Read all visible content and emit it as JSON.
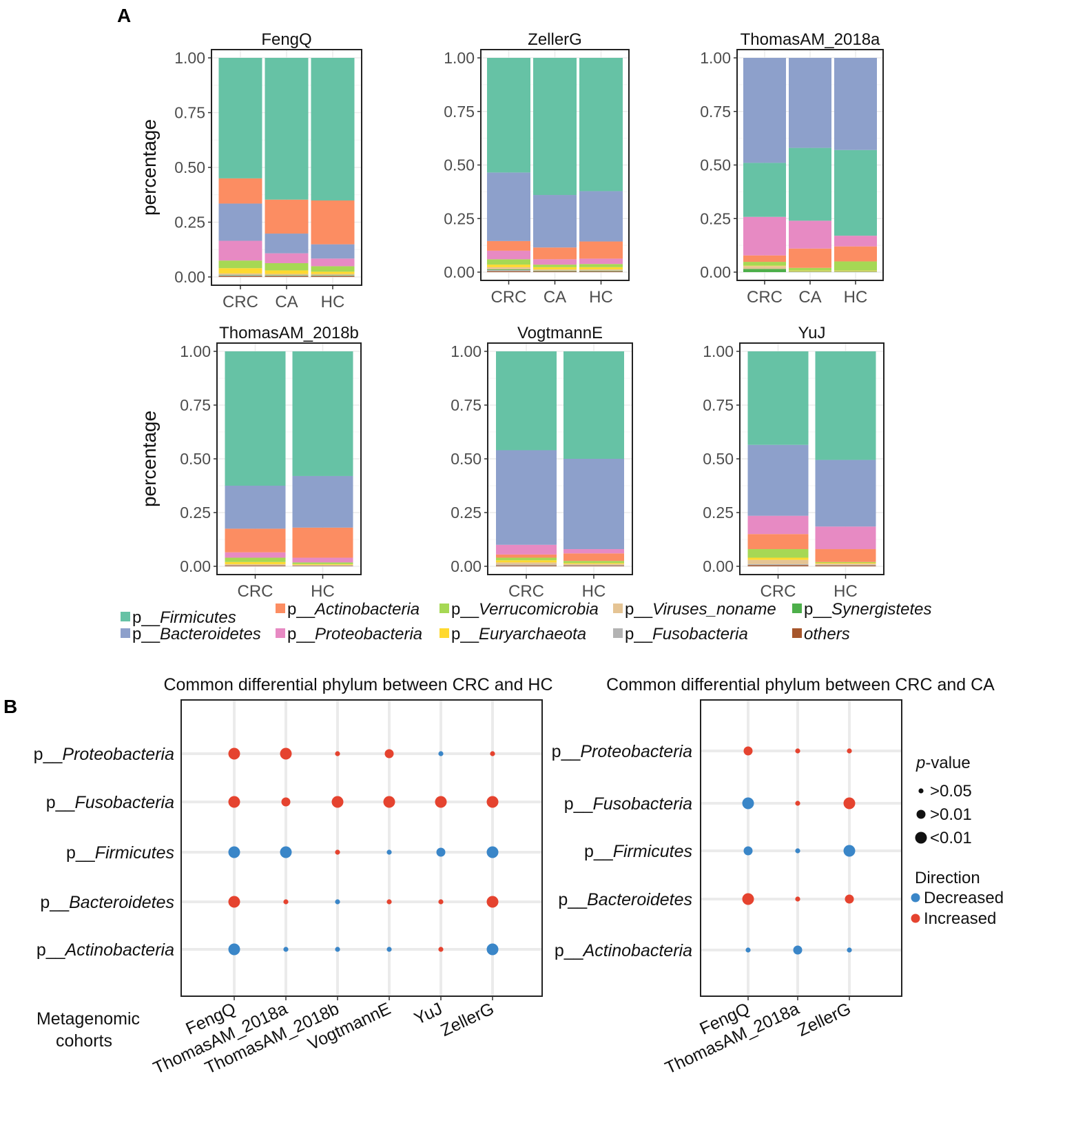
{
  "panels": {
    "a": "A",
    "b": "B"
  },
  "chart_data": [
    {
      "type": "stacked-bar",
      "title": "FengQ",
      "ylabel": "percentage",
      "ylim": [
        0,
        1
      ],
      "ticks": [
        "0.00",
        "0.25",
        "0.50",
        "0.75",
        "1.00"
      ],
      "categories": [
        "CRC",
        "CA",
        "HC"
      ],
      "segments": [
        [
          [
            "others",
            0.004
          ],
          [
            "Fusobacteria",
            0.004
          ],
          [
            "Synergistetes",
            0.002
          ],
          [
            "Viruses",
            0.006
          ],
          [
            "Euryarchaeota",
            0.024
          ],
          [
            "Verrucomicrobia",
            0.035
          ],
          [
            "Proteobacteria",
            0.09
          ],
          [
            "Bacteroidetes",
            0.17
          ],
          [
            "Actinobacteria",
            0.115
          ],
          [
            "Firmicutes",
            0.55
          ]
        ],
        [
          [
            "others",
            0.004
          ],
          [
            "Fusobacteria",
            0.002
          ],
          [
            "Synergistetes",
            0.002
          ],
          [
            "Viruses",
            0.006
          ],
          [
            "Euryarchaeota",
            0.016
          ],
          [
            "Verrucomicrobia",
            0.033
          ],
          [
            "Proteobacteria",
            0.045
          ],
          [
            "Bacteroidetes",
            0.09
          ],
          [
            "Actinobacteria",
            0.155
          ],
          [
            "Firmicutes",
            0.647
          ]
        ],
        [
          [
            "others",
            0.004
          ],
          [
            "Fusobacteria",
            0.002
          ],
          [
            "Synergistetes",
            0.002
          ],
          [
            "Viruses",
            0.006
          ],
          [
            "Euryarchaeota",
            0.01
          ],
          [
            "Verrucomicrobia",
            0.025
          ],
          [
            "Proteobacteria",
            0.035
          ],
          [
            "Bacteroidetes",
            0.065
          ],
          [
            "Actinobacteria",
            0.2
          ],
          [
            "Firmicutes",
            0.651
          ]
        ]
      ]
    },
    {
      "type": "stacked-bar",
      "title": "ZellerG",
      "ylabel": "",
      "ylim": [
        0,
        1
      ],
      "ticks": [
        "0.00",
        "0.25",
        "0.50",
        "0.75",
        "1.00"
      ],
      "categories": [
        "CRC",
        "CA",
        "HC"
      ],
      "segments": [
        [
          [
            "others",
            0.004
          ],
          [
            "Fusobacteria",
            0.006
          ],
          [
            "Synergistetes",
            0.003
          ],
          [
            "Viruses",
            0.01
          ],
          [
            "Euryarchaeota",
            0.012
          ],
          [
            "Verrucomicrobia",
            0.025
          ],
          [
            "Proteobacteria",
            0.04
          ],
          [
            "Actinobacteria",
            0.045
          ],
          [
            "Bacteroidetes",
            0.32
          ],
          [
            "Firmicutes",
            0.535
          ]
        ],
        [
          [
            "others",
            0.003
          ],
          [
            "Fusobacteria",
            0.002
          ],
          [
            "Synergistetes",
            0.002
          ],
          [
            "Viruses",
            0.006
          ],
          [
            "Euryarchaeota",
            0.01
          ],
          [
            "Verrucomicrobia",
            0.012
          ],
          [
            "Proteobacteria",
            0.025
          ],
          [
            "Actinobacteria",
            0.055
          ],
          [
            "Bacteroidetes",
            0.245
          ],
          [
            "Firmicutes",
            0.64
          ]
        ],
        [
          [
            "others",
            0.003
          ],
          [
            "Fusobacteria",
            0.002
          ],
          [
            "Synergistetes",
            0.002
          ],
          [
            "Viruses",
            0.006
          ],
          [
            "Euryarchaeota",
            0.01
          ],
          [
            "Verrucomicrobia",
            0.015
          ],
          [
            "Proteobacteria",
            0.025
          ],
          [
            "Actinobacteria",
            0.08
          ],
          [
            "Bacteroidetes",
            0.235
          ],
          [
            "Firmicutes",
            0.622
          ]
        ]
      ]
    },
    {
      "type": "stacked-bar",
      "title": "ThomasAM_2018a",
      "ylabel": "",
      "ylim": [
        0,
        1
      ],
      "ticks": [
        "0.00",
        "0.25",
        "0.50",
        "0.75",
        "1.00"
      ],
      "categories": [
        "CRC",
        "CA",
        "HC"
      ],
      "segments": [
        [
          [
            "Synergistetes",
            0.015
          ],
          [
            "Viruses",
            0.013
          ],
          [
            "Euryarchaeota",
            0.002
          ],
          [
            "Verrucomicrobia",
            0.018
          ],
          [
            "Actinobacteria",
            0.03
          ],
          [
            "Proteobacteria",
            0.18
          ],
          [
            "Firmicutes",
            0.252
          ],
          [
            "Bacteroidetes",
            0.49
          ]
        ],
        [
          [
            "Synergistetes",
            0.002
          ],
          [
            "Viruses",
            0.003
          ],
          [
            "Euryarchaeota",
            0.002
          ],
          [
            "Verrucomicrobia",
            0.013
          ],
          [
            "Actinobacteria",
            0.09
          ],
          [
            "Proteobacteria",
            0.13
          ],
          [
            "Firmicutes",
            0.34
          ],
          [
            "Bacteroidetes",
            0.42
          ]
        ],
        [
          [
            "Synergistetes",
            0.002
          ],
          [
            "Viruses",
            0.003
          ],
          [
            "Euryarchaeota",
            0.002
          ],
          [
            "Verrucomicrobia",
            0.043
          ],
          [
            "Actinobacteria",
            0.07
          ],
          [
            "Proteobacteria",
            0.05
          ],
          [
            "Firmicutes",
            0.4
          ],
          [
            "Bacteroidetes",
            0.43
          ]
        ]
      ]
    },
    {
      "type": "stacked-bar",
      "title": "ThomasAM_2018b",
      "ylabel": "percentage",
      "ylim": [
        0,
        1
      ],
      "ticks": [
        "0.00",
        "0.25",
        "0.50",
        "0.75",
        "1.00"
      ],
      "categories": [
        "CRC",
        "HC"
      ],
      "segments": [
        [
          [
            "others",
            0.003
          ],
          [
            "Fusobacteria",
            0.002
          ],
          [
            "Viruses",
            0.005
          ],
          [
            "Euryarchaeota",
            0.01
          ],
          [
            "Verrucomicrobia",
            0.02
          ],
          [
            "Proteobacteria",
            0.025
          ],
          [
            "Actinobacteria",
            0.11
          ],
          [
            "Bacteroidetes",
            0.2
          ],
          [
            "Firmicutes",
            0.625
          ]
        ],
        [
          [
            "others",
            0.002
          ],
          [
            "Fusobacteria",
            0.002
          ],
          [
            "Viruses",
            0.003
          ],
          [
            "Euryarchaeota",
            0.003
          ],
          [
            "Verrucomicrobia",
            0.008
          ],
          [
            "Proteobacteria",
            0.022
          ],
          [
            "Actinobacteria",
            0.14
          ],
          [
            "Bacteroidetes",
            0.24
          ],
          [
            "Firmicutes",
            0.58
          ]
        ]
      ]
    },
    {
      "type": "stacked-bar",
      "title": "VogtmannE",
      "ylabel": "",
      "ylim": [
        0,
        1
      ],
      "ticks": [
        "0.00",
        "0.25",
        "0.50",
        "0.75",
        "1.00"
      ],
      "categories": [
        "CRC",
        "HC"
      ],
      "segments": [
        [
          [
            "others",
            0.004
          ],
          [
            "Fusobacteria",
            0.004
          ],
          [
            "Viruses",
            0.01
          ],
          [
            "Euryarchaeota",
            0.01
          ],
          [
            "Verrucomicrobia",
            0.012
          ],
          [
            "Actinobacteria",
            0.015
          ],
          [
            "Proteobacteria",
            0.045
          ],
          [
            "Bacteroidetes",
            0.44
          ],
          [
            "Firmicutes",
            0.46
          ]
        ],
        [
          [
            "others",
            0.003
          ],
          [
            "Fusobacteria",
            0.003
          ],
          [
            "Viruses",
            0.005
          ],
          [
            "Euryarchaeota",
            0.004
          ],
          [
            "Verrucomicrobia",
            0.01
          ],
          [
            "Actinobacteria",
            0.035
          ],
          [
            "Proteobacteria",
            0.02
          ],
          [
            "Bacteroidetes",
            0.42
          ],
          [
            "Firmicutes",
            0.5
          ]
        ]
      ]
    },
    {
      "type": "stacked-bar",
      "title": "YuJ",
      "ylabel": "",
      "ylim": [
        0,
        1
      ],
      "ticks": [
        "0.00",
        "0.25",
        "0.50",
        "0.75",
        "1.00"
      ],
      "categories": [
        "CRC",
        "HC"
      ],
      "segments": [
        [
          [
            "others",
            0.005
          ],
          [
            "Fusobacteria",
            0.005
          ],
          [
            "Viruses",
            0.02
          ],
          [
            "Euryarchaeota",
            0.01
          ],
          [
            "Verrucomicrobia",
            0.04
          ],
          [
            "Actinobacteria",
            0.07
          ],
          [
            "Proteobacteria",
            0.085
          ],
          [
            "Bacteroidetes",
            0.33
          ],
          [
            "Firmicutes",
            0.435
          ]
        ],
        [
          [
            "others",
            0.004
          ],
          [
            "Fusobacteria",
            0.003
          ],
          [
            "Viruses",
            0.006
          ],
          [
            "Euryarchaeota",
            0.003
          ],
          [
            "Verrucomicrobia",
            0.004
          ],
          [
            "Actinobacteria",
            0.06
          ],
          [
            "Proteobacteria",
            0.105
          ],
          [
            "Bacteroidetes",
            0.31
          ],
          [
            "Firmicutes",
            0.505
          ]
        ]
      ]
    },
    {
      "type": "dot",
      "title": "Common differential phylum between CRC and HC",
      "xlabel": "Metagenomic cohorts",
      "rows": [
        "p__Proteobacteria",
        "p__Fusobacteria",
        "p__Firmicutes",
        "p__Bacteroidetes",
        "p__Actinobacteria"
      ],
      "columns": [
        "FengQ",
        "ThomasAM_2018a",
        "ThomasAM_2018b",
        "VogtmannE",
        "YuJ",
        "ZellerG"
      ],
      "direction": [
        [
          "Increased",
          "Increased",
          "Increased",
          "Increased",
          "Decreased",
          "Increased"
        ],
        [
          "Increased",
          "Increased",
          "Increased",
          "Increased",
          "Increased",
          "Increased"
        ],
        [
          "Decreased",
          "Decreased",
          "Increased",
          "Decreased",
          "Decreased",
          "Decreased"
        ],
        [
          "Increased",
          "Increased",
          "Decreased",
          "Increased",
          "Increased",
          "Increased"
        ],
        [
          "Decreased",
          "Decreased",
          "Decreased",
          "Decreased",
          "Increased",
          "Decreased"
        ]
      ],
      "pvalue": [
        [
          "<0.01",
          "<0.01",
          ">0.05",
          ">0.01",
          ">0.05",
          ">0.05"
        ],
        [
          "<0.01",
          ">0.01",
          "<0.01",
          "<0.01",
          "<0.01",
          "<0.01"
        ],
        [
          "<0.01",
          "<0.01",
          ">0.05",
          ">0.05",
          ">0.01",
          "<0.01"
        ],
        [
          "<0.01",
          ">0.05",
          ">0.05",
          ">0.05",
          ">0.05",
          "<0.01"
        ],
        [
          "<0.01",
          ">0.05",
          ">0.05",
          ">0.05",
          ">0.05",
          "<0.01"
        ]
      ]
    },
    {
      "type": "dot",
      "title": "Common differential phylum between CRC and CA",
      "rows": [
        "p__Proteobacteria",
        "p__Fusobacteria",
        "p__Firmicutes",
        "p__Bacteroidetes",
        "p__Actinobacteria"
      ],
      "columns": [
        "FengQ",
        "ThomasAM_2018a",
        "ZellerG"
      ],
      "direction": [
        [
          "Increased",
          "Increased",
          "Increased"
        ],
        [
          "Decreased",
          "Increased",
          "Increased"
        ],
        [
          "Decreased",
          "Decreased",
          "Decreased"
        ],
        [
          "Increased",
          "Increased",
          "Increased"
        ],
        [
          "Decreased",
          "Decreased",
          "Decreased"
        ]
      ],
      "pvalue": [
        [
          ">0.01",
          ">0.05",
          ">0.05"
        ],
        [
          "<0.01",
          ">0.05",
          "<0.01"
        ],
        [
          ">0.01",
          ">0.05",
          "<0.01"
        ],
        [
          "<0.01",
          ">0.05",
          ">0.01"
        ],
        [
          ">0.05",
          ">0.01",
          ">0.05"
        ]
      ]
    }
  ],
  "phylum_legend": [
    {
      "key": "Firmicutes",
      "prefix": "p__",
      "name": "Firmicutes",
      "color": "#66c2a5"
    },
    {
      "key": "Bacteroidetes",
      "prefix": "p__",
      "name": "Bacteroidetes",
      "color": "#8da0cb"
    },
    {
      "key": "Actinobacteria",
      "prefix": "p__",
      "name": "Actinobacteria",
      "color": "#fc8d62"
    },
    {
      "key": "Proteobacteria",
      "prefix": "p__",
      "name": "Proteobacteria",
      "color": "#e78ac3"
    },
    {
      "key": "Verrucomicrobia",
      "prefix": "p__",
      "name": "Verrucomicrobia",
      "color": "#a6d854"
    },
    {
      "key": "Euryarchaeota",
      "prefix": "p__",
      "name": "Euryarchaeota",
      "color": "#ffd92f"
    },
    {
      "key": "Viruses",
      "prefix": "p__",
      "name": "Viruses_noname",
      "color": "#e5c494"
    },
    {
      "key": "Fusobacteria",
      "prefix": "p__",
      "name": "Fusobacteria",
      "color": "#b3b3b3"
    },
    {
      "key": "Synergistetes",
      "prefix": "p__",
      "name": "Synergistetes",
      "color": "#4daf4a"
    },
    {
      "key": "others",
      "prefix": "",
      "name": "others",
      "color": "#a6562b"
    }
  ],
  "legend_b": {
    "pvalue_title_italic": "p",
    "pvalue_title_rest": "-value",
    "sizes": [
      ">0.05",
      ">0.01",
      "<0.01"
    ],
    "direction_title": "Direction",
    "directions": [
      {
        "label": "Decreased",
        "color": "#3a86c8"
      },
      {
        "label": "Increased",
        "color": "#e5432f"
      }
    ]
  }
}
